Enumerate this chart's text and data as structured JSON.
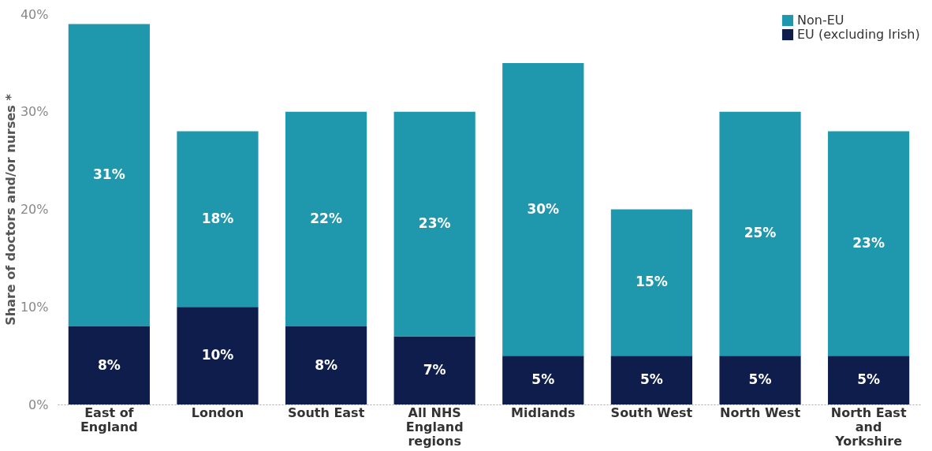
{
  "chart_data": {
    "type": "bar",
    "stacked": true,
    "ylabel": "Share of doctors and/or nurses *",
    "categories": [
      "East of England",
      "London",
      "South East",
      "All NHS England regions",
      "Midlands",
      "South West",
      "North West",
      "North East and Yorkshire"
    ],
    "series": [
      {
        "name": "EU (excluding Irish)",
        "color": "#0e1d4b",
        "values": [
          8,
          10,
          8,
          7,
          5,
          5,
          5,
          5
        ],
        "value_labels": [
          "8%",
          "10%",
          "8%",
          "7%",
          "5%",
          "5%",
          "5%",
          "5%"
        ]
      },
      {
        "name": "Non-EU",
        "color": "#1f97ac",
        "values": [
          31,
          18,
          22,
          23,
          30,
          15,
          25,
          23
        ],
        "value_labels": [
          "31%",
          "18%",
          "22%",
          "23%",
          "30%",
          "15%",
          "25%",
          "23%"
        ]
      }
    ],
    "ylim": [
      0,
      40
    ],
    "yticks": [
      {
        "value": 0,
        "label": "0%"
      },
      {
        "value": 10,
        "label": "10%"
      },
      {
        "value": 20,
        "label": "20%"
      },
      {
        "value": 30,
        "label": "30%"
      },
      {
        "value": 40,
        "label": "40%"
      }
    ],
    "grid": false,
    "legend": "top right"
  }
}
